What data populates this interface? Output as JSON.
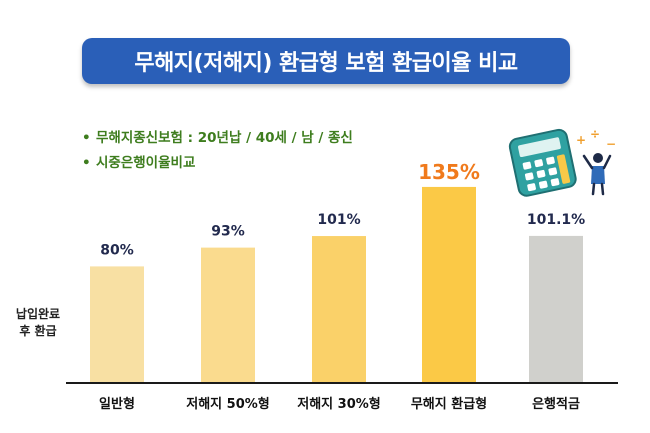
{
  "title": "무해지(저해지) 환급형 보험 환급이율 비교",
  "notes": [
    "무해지종신보험 : 20년납 / 40세 / 남 / 종신",
    "시중은행이율비교"
  ],
  "bullet": "•",
  "ylabel_lines": [
    "납입완료",
    "후 환급"
  ],
  "chart_data": {
    "type": "bar",
    "title": "무해지(저해지) 환급형 보험 환급이율 비교",
    "xlabel": "",
    "ylabel": "납입완료 후 환급",
    "categories": [
      "일반형",
      "저해지 50%형",
      "저해지 30%형",
      "무해지 환급형",
      "은행적금"
    ],
    "values": [
      80,
      93,
      101,
      135,
      101.1
    ],
    "data_labels": [
      "80%",
      "93%",
      "101%",
      "135%",
      "101.1%"
    ],
    "unit": "%",
    "ylim": [
      0,
      140
    ],
    "grid": false,
    "legend": "none",
    "colors": [
      "#f8e0a3",
      "#fadb8e",
      "#fad169",
      "#fbc946",
      "#d0d0cc"
    ],
    "highlight_index": 3,
    "highlight_label_color": "#f07a1c",
    "label_color": "#222a4e"
  },
  "colors": {
    "banner": "#2a5fb8",
    "note_text": "#3e7d1e",
    "axis": "#1a1a1a",
    "calculator": "#2fa1a1"
  },
  "illustration": {
    "calculator_icon": "calculator-icon",
    "person_icon": "person-with-math-signs-icon"
  }
}
